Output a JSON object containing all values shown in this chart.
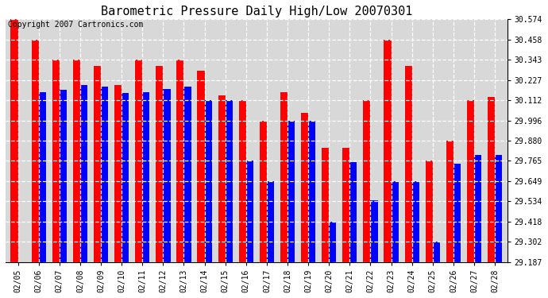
{
  "title": "Barometric Pressure Daily High/Low 20070301",
  "copyright": "Copyright 2007 Cartronics.com",
  "dates": [
    "02/05",
    "02/06",
    "02/07",
    "02/08",
    "02/09",
    "02/10",
    "02/11",
    "02/12",
    "02/13",
    "02/14",
    "02/15",
    "02/16",
    "02/17",
    "02/18",
    "02/19",
    "02/20",
    "02/21",
    "02/22",
    "02/23",
    "02/24",
    "02/25",
    "02/26",
    "02/27",
    "02/28"
  ],
  "highs": [
    30.574,
    30.458,
    30.343,
    30.343,
    30.31,
    30.2,
    30.343,
    30.31,
    30.343,
    30.28,
    30.14,
    30.112,
    29.996,
    30.16,
    30.04,
    29.84,
    29.84,
    30.112,
    30.458,
    30.31,
    29.765,
    29.88,
    30.112,
    30.13
  ],
  "lows": [
    29.187,
    30.16,
    30.17,
    30.2,
    30.19,
    30.155,
    30.16,
    30.175,
    30.19,
    30.112,
    30.112,
    29.765,
    29.65,
    29.995,
    29.996,
    29.418,
    29.76,
    29.54,
    29.65,
    29.65,
    29.302,
    29.75,
    29.8,
    29.8
  ],
  "ylim_min": 29.187,
  "ylim_max": 30.574,
  "yticks": [
    29.187,
    29.302,
    29.418,
    29.534,
    29.649,
    29.765,
    29.88,
    29.996,
    30.112,
    30.227,
    30.343,
    30.458,
    30.574
  ],
  "high_color": "#ff0000",
  "low_color": "#0000ff",
  "bg_color": "#ffffff",
  "plot_bg_color": "#d8d8d8",
  "grid_color": "#ffffff",
  "title_fontsize": 11,
  "copyright_fontsize": 7
}
